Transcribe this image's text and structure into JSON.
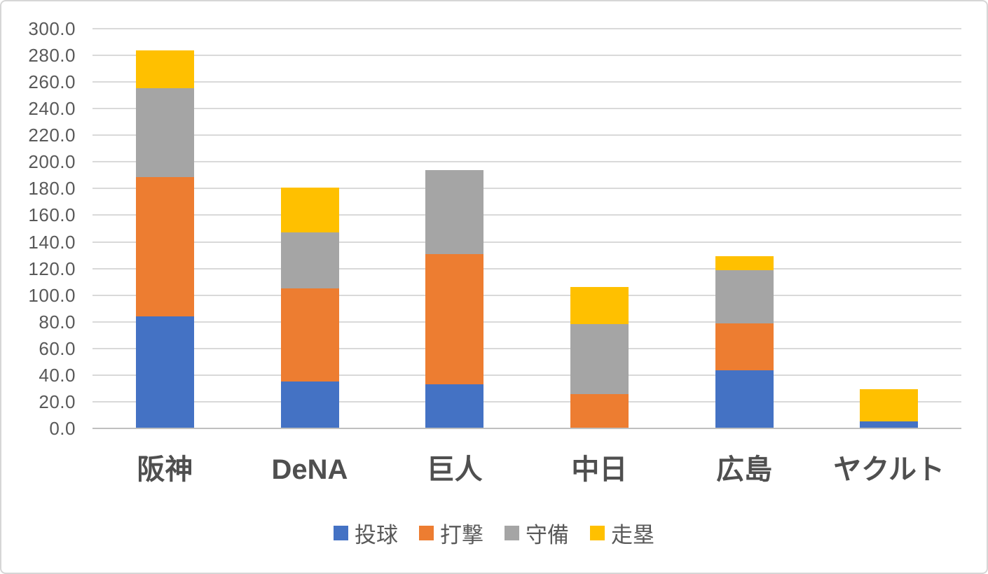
{
  "chart_data": {
    "type": "bar",
    "stacked": true,
    "title": "",
    "xlabel": "",
    "ylabel": "",
    "categories": [
      "阪神",
      "DeNA",
      "巨人",
      "中日",
      "広島",
      "ヤクルト"
    ],
    "series": [
      {
        "name": "投球",
        "color": "#4472C4",
        "values": [
          84.0,
          35.0,
          33.0,
          0.0,
          43.5,
          5.0
        ]
      },
      {
        "name": "打撃",
        "color": "#ED7D31",
        "values": [
          104.5,
          70.0,
          98.0,
          26.0,
          35.5,
          0.0
        ]
      },
      {
        "name": "守備",
        "color": "#A5A5A5",
        "values": [
          67.0,
          42.0,
          63.0,
          52.5,
          39.5,
          0.0
        ]
      },
      {
        "name": "走塁",
        "color": "#FFC000",
        "values": [
          28.0,
          33.5,
          0.0,
          27.5,
          11.0,
          24.5
        ]
      }
    ],
    "totals": [
      283.5,
      180.5,
      194.0,
      106.0,
      129.5,
      29.5
    ],
    "ylim": [
      0,
      300
    ],
    "ytick_step": 20,
    "ytick_labels": [
      "0.0",
      "20.0",
      "40.0",
      "60.0",
      "80.0",
      "100.0",
      "120.0",
      "140.0",
      "160.0",
      "180.0",
      "200.0",
      "220.0",
      "240.0",
      "260.0",
      "280.0",
      "300.0"
    ],
    "grid": true,
    "legend_position": "bottom"
  },
  "style": {
    "grid_color": "#d9d9d9",
    "axis_line_color": "#bfbfbf",
    "tick_text_color": "#595959",
    "category_text_color": "#4f4f4f",
    "legend_text_color": "#595959",
    "background": "#ffffff",
    "frame_border_color": "#d6d6d6"
  }
}
